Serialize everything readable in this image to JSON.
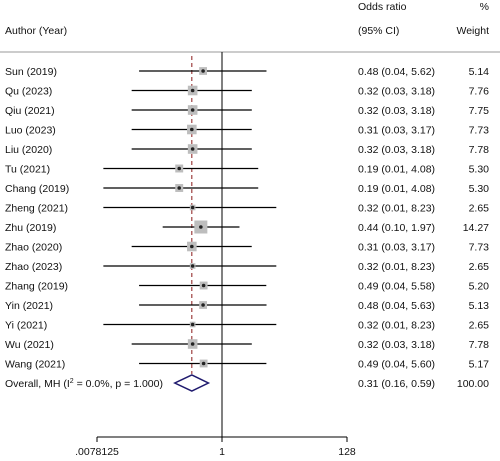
{
  "header": {
    "author_label": "Author (Year)",
    "or_label_line1": "Odds ratio",
    "or_label_line2": "(95% CI)",
    "weight_label_line1": "%",
    "weight_label_line2": "Weight"
  },
  "chart_data": {
    "type": "forest",
    "x_scale": "log2",
    "xlim": [
      0.0078125,
      128
    ],
    "x_ticks": [
      0.0078125,
      1,
      128
    ],
    "x_tick_labels": [
      ".0078125",
      "1",
      "128"
    ],
    "null_line": 1,
    "reference_line": 0.31,
    "studies": [
      {
        "label": "Sun (2019)",
        "or": 0.48,
        "lo": 0.04,
        "hi": 5.62,
        "ci_text": "0.48 (0.04, 5.62)",
        "weight": 5.14,
        "weight_text": "5.14"
      },
      {
        "label": "Qu (2023)",
        "or": 0.32,
        "lo": 0.03,
        "hi": 3.18,
        "ci_text": "0.32 (0.03, 3.18)",
        "weight": 7.76,
        "weight_text": "7.76"
      },
      {
        "label": "Qiu (2021)",
        "or": 0.32,
        "lo": 0.03,
        "hi": 3.18,
        "ci_text": "0.32 (0.03, 3.18)",
        "weight": 7.75,
        "weight_text": "7.75"
      },
      {
        "label": "Luo (2023)",
        "or": 0.31,
        "lo": 0.03,
        "hi": 3.17,
        "ci_text": "0.31 (0.03, 3.17)",
        "weight": 7.73,
        "weight_text": "7.73"
      },
      {
        "label": "Liu (2020)",
        "or": 0.32,
        "lo": 0.03,
        "hi": 3.18,
        "ci_text": "0.32 (0.03, 3.18)",
        "weight": 7.78,
        "weight_text": "7.78"
      },
      {
        "label": "Tu (2021)",
        "or": 0.19,
        "lo": 0.01,
        "hi": 4.08,
        "ci_text": "0.19 (0.01, 4.08)",
        "weight": 5.3,
        "weight_text": "5.30"
      },
      {
        "label": "Chang (2019)",
        "or": 0.19,
        "lo": 0.01,
        "hi": 4.08,
        "ci_text": "0.19 (0.01, 4.08)",
        "weight": 5.3,
        "weight_text": "5.30"
      },
      {
        "label": "Zheng (2021)",
        "or": 0.32,
        "lo": 0.01,
        "hi": 8.23,
        "ci_text": "0.32 (0.01, 8.23)",
        "weight": 2.65,
        "weight_text": "2.65"
      },
      {
        "label": "Zhu (2019)",
        "or": 0.44,
        "lo": 0.1,
        "hi": 1.97,
        "ci_text": "0.44 (0.10, 1.97)",
        "weight": 14.27,
        "weight_text": "14.27"
      },
      {
        "label": "Zhao (2020)",
        "or": 0.31,
        "lo": 0.03,
        "hi": 3.17,
        "ci_text": "0.31 (0.03, 3.17)",
        "weight": 7.73,
        "weight_text": "7.73"
      },
      {
        "label": "Zhao (2023)",
        "or": 0.32,
        "lo": 0.01,
        "hi": 8.23,
        "ci_text": "0.32 (0.01, 8.23)",
        "weight": 2.65,
        "weight_text": "2.65"
      },
      {
        "label": "Zhang (2019)",
        "or": 0.49,
        "lo": 0.04,
        "hi": 5.58,
        "ci_text": "0.49 (0.04, 5.58)",
        "weight": 5.2,
        "weight_text": "5.20"
      },
      {
        "label": "Yin (2021)",
        "or": 0.48,
        "lo": 0.04,
        "hi": 5.63,
        "ci_text": "0.48 (0.04, 5.63)",
        "weight": 5.13,
        "weight_text": "5.13"
      },
      {
        "label": "Yi (2021)",
        "or": 0.32,
        "lo": 0.01,
        "hi": 8.23,
        "ci_text": "0.32 (0.01, 8.23)",
        "weight": 2.65,
        "weight_text": "2.65"
      },
      {
        "label": "Wu (2021)",
        "or": 0.32,
        "lo": 0.03,
        "hi": 3.18,
        "ci_text": "0.32 (0.03, 3.18)",
        "weight": 7.78,
        "weight_text": "7.78"
      },
      {
        "label": "Wang (2021)",
        "or": 0.49,
        "lo": 0.04,
        "hi": 5.6,
        "ci_text": "0.49 (0.04, 5.60)",
        "weight": 5.17,
        "weight_text": "5.17"
      }
    ],
    "overall": {
      "label_prefix": "Overall, MH (I",
      "label_sup": "2",
      "label_suffix": " = 0.0%, p = 1.000)",
      "or": 0.31,
      "lo": 0.16,
      "hi": 0.59,
      "ci_text": "0.31 (0.16, 0.59)",
      "weight_text": "100.00"
    },
    "colors": {
      "ci_line": "#000000",
      "weight_box": "#bdbdbd",
      "point": "#222222",
      "null_line": "#000000",
      "reference_line": "#8b1a1a",
      "diamond": "#1f1a6e",
      "separator": "#999999"
    }
  }
}
